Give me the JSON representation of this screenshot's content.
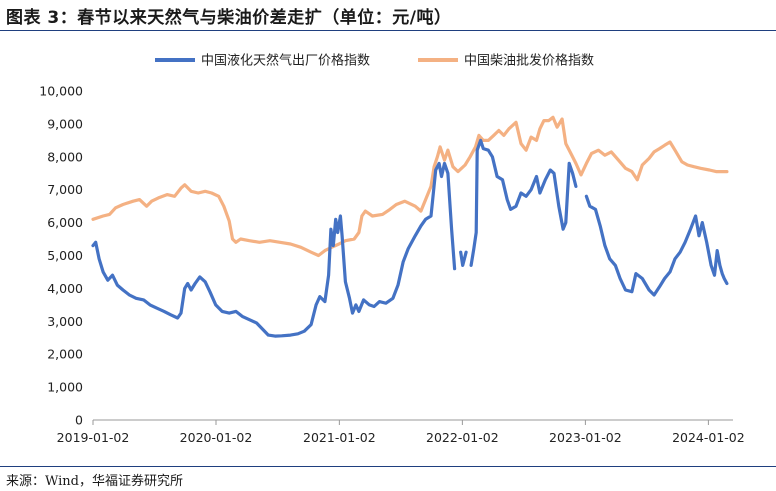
{
  "header": {
    "title": "图表 3：春节以来天然气与柴油价差走扩（单位：元/吨）"
  },
  "footer": {
    "source": "来源：Wind，华福证券研究所"
  },
  "chart_data": {
    "type": "line",
    "title": "图表 3：春节以来天然气与柴油价差走扩（单位：元/吨）",
    "xlabel": "",
    "ylabel": "",
    "ylim": [
      0,
      10000
    ],
    "yticks": [
      0,
      1000,
      2000,
      3000,
      4000,
      5000,
      6000,
      7000,
      8000,
      9000,
      10000
    ],
    "ytick_labels": [
      "0",
      "1,000",
      "2,000",
      "3,000",
      "4,000",
      "5,000",
      "6,000",
      "7,000",
      "8,000",
      "9,000",
      "10,000"
    ],
    "xlim": [
      "2019-01-02",
      "2024-03-15"
    ],
    "xticks": [
      "2019-01-02",
      "2020-01-02",
      "2021-01-02",
      "2022-01-02",
      "2023-01-02",
      "2024-01-02"
    ],
    "legend_position": "top",
    "grid": false,
    "series": [
      {
        "name": "中国液化天然气出厂价格指数",
        "color": "#4472c4",
        "points": [
          [
            "2019-01-02",
            5300
          ],
          [
            "2019-01-10",
            5400
          ],
          [
            "2019-01-20",
            4900
          ],
          [
            "2019-02-01",
            4500
          ],
          [
            "2019-02-15",
            4250
          ],
          [
            "2019-03-01",
            4400
          ],
          [
            "2019-03-15",
            4100
          ],
          [
            "2019-04-01",
            3950
          ],
          [
            "2019-04-20",
            3800
          ],
          [
            "2019-05-10",
            3700
          ],
          [
            "2019-06-01",
            3650
          ],
          [
            "2019-06-20",
            3500
          ],
          [
            "2019-07-10",
            3400
          ],
          [
            "2019-08-01",
            3300
          ],
          [
            "2019-08-20",
            3200
          ],
          [
            "2019-09-10",
            3100
          ],
          [
            "2019-09-20",
            3250
          ],
          [
            "2019-10-01",
            4000
          ],
          [
            "2019-10-10",
            4150
          ],
          [
            "2019-10-20",
            3950
          ],
          [
            "2019-11-01",
            4150
          ],
          [
            "2019-11-15",
            4350
          ],
          [
            "2019-12-01",
            4200
          ],
          [
            "2019-12-15",
            3900
          ],
          [
            "2020-01-01",
            3500
          ],
          [
            "2020-01-20",
            3300
          ],
          [
            "2020-02-10",
            3250
          ],
          [
            "2020-03-01",
            3300
          ],
          [
            "2020-03-20",
            3150
          ],
          [
            "2020-04-10",
            3050
          ],
          [
            "2020-05-01",
            2950
          ],
          [
            "2020-05-20",
            2750
          ],
          [
            "2020-06-05",
            2580
          ],
          [
            "2020-06-25",
            2550
          ],
          [
            "2020-07-15",
            2560
          ],
          [
            "2020-08-10",
            2580
          ],
          [
            "2020-09-01",
            2620
          ],
          [
            "2020-09-20",
            2700
          ],
          [
            "2020-10-10",
            2900
          ],
          [
            "2020-10-25",
            3500
          ],
          [
            "2020-11-05",
            3750
          ],
          [
            "2020-11-20",
            3600
          ],
          [
            "2020-12-01",
            4400
          ],
          [
            "2020-12-08",
            5800
          ],
          [
            "2020-12-15",
            5300
          ],
          [
            "2020-12-22",
            6100
          ],
          [
            "2020-12-28",
            5700
          ],
          [
            "2021-01-05",
            6200
          ],
          [
            "2021-01-10",
            5600
          ],
          [
            "2021-01-20",
            4200
          ],
          [
            "2021-02-01",
            3700
          ],
          [
            "2021-02-10",
            3250
          ],
          [
            "2021-02-20",
            3500
          ],
          [
            "2021-03-01",
            3300
          ],
          [
            "2021-03-15",
            3650
          ],
          [
            "2021-04-01",
            3500
          ],
          [
            "2021-04-15",
            3450
          ],
          [
            "2021-05-01",
            3600
          ],
          [
            "2021-05-20",
            3550
          ],
          [
            "2021-06-10",
            3700
          ],
          [
            "2021-06-25",
            4100
          ],
          [
            "2021-07-10",
            4800
          ],
          [
            "2021-07-25",
            5200
          ],
          [
            "2021-08-15",
            5600
          ],
          [
            "2021-09-01",
            5900
          ],
          [
            "2021-09-15",
            6100
          ],
          [
            "2021-10-01",
            6200
          ],
          [
            "2021-10-15",
            7600
          ],
          [
            "2021-10-25",
            7800
          ],
          [
            "2021-11-01",
            7400
          ],
          [
            "2021-11-10",
            7800
          ],
          [
            "2021-11-20",
            7500
          ],
          [
            "2021-12-01",
            5800
          ],
          [
            "2021-12-10",
            4600
          ],
          null,
          [
            "2021-12-28",
            5100
          ],
          [
            "2022-01-03",
            4700
          ],
          [
            "2022-01-08",
            4900
          ],
          [
            "2022-01-13",
            5100
          ],
          null,
          [
            "2022-01-28",
            4700
          ],
          [
            "2022-02-05",
            5200
          ],
          [
            "2022-02-12",
            5700
          ],
          [
            "2022-02-15",
            8200
          ],
          [
            "2022-02-25",
            8500
          ],
          [
            "2022-03-05",
            8250
          ],
          [
            "2022-03-20",
            8200
          ],
          [
            "2022-04-01",
            8000
          ],
          [
            "2022-04-15",
            7400
          ],
          [
            "2022-05-01",
            7300
          ],
          [
            "2022-05-15",
            6700
          ],
          [
            "2022-05-25",
            6400
          ],
          [
            "2022-06-10",
            6500
          ],
          [
            "2022-06-25",
            6900
          ],
          [
            "2022-07-10",
            6800
          ],
          [
            "2022-07-25",
            7000
          ],
          [
            "2022-08-10",
            7400
          ],
          [
            "2022-08-20",
            6900
          ],
          [
            "2022-09-05",
            7300
          ],
          [
            "2022-09-20",
            7600
          ],
          [
            "2022-10-01",
            7500
          ],
          [
            "2022-10-15",
            6500
          ],
          [
            "2022-10-28",
            5800
          ],
          [
            "2022-11-05",
            6000
          ],
          [
            "2022-11-15",
            7800
          ],
          [
            "2022-11-25",
            7500
          ],
          [
            "2022-12-05",
            7100
          ],
          null,
          [
            "2023-01-05",
            6800
          ],
          [
            "2023-01-15",
            6500
          ],
          [
            "2023-02-01",
            6400
          ],
          [
            "2023-02-15",
            5900
          ],
          [
            "2023-03-01",
            5300
          ],
          [
            "2023-03-15",
            4900
          ],
          [
            "2023-04-01",
            4700
          ],
          [
            "2023-04-15",
            4300
          ],
          [
            "2023-05-01",
            3950
          ],
          [
            "2023-05-20",
            3900
          ],
          [
            "2023-06-01",
            4450
          ],
          [
            "2023-06-20",
            4300
          ],
          [
            "2023-07-10",
            3950
          ],
          [
            "2023-07-25",
            3800
          ],
          [
            "2023-08-10",
            4050
          ],
          [
            "2023-08-25",
            4300
          ],
          [
            "2023-09-10",
            4500
          ],
          [
            "2023-09-25",
            4900
          ],
          [
            "2023-10-10",
            5100
          ],
          [
            "2023-10-25",
            5400
          ],
          [
            "2023-11-10",
            5800
          ],
          [
            "2023-11-25",
            6200
          ],
          [
            "2023-12-05",
            5600
          ],
          [
            "2023-12-15",
            6000
          ],
          [
            "2023-12-28",
            5400
          ],
          [
            "2024-01-10",
            4700
          ],
          [
            "2024-01-20",
            4400
          ],
          [
            "2024-01-28",
            5150
          ],
          [
            "2024-02-05",
            4700
          ],
          [
            "2024-02-12",
            4450
          ],
          [
            "2024-02-18",
            4300
          ],
          [
            "2024-02-26",
            4150
          ]
        ]
      },
      {
        "name": "中国柴油批发价格指数",
        "color": "#f4b183",
        "points": [
          [
            "2019-01-02",
            6100
          ],
          [
            "2019-02-01",
            6200
          ],
          [
            "2019-02-20",
            6250
          ],
          [
            "2019-03-10",
            6450
          ],
          [
            "2019-04-01",
            6550
          ],
          [
            "2019-05-01",
            6650
          ],
          [
            "2019-05-20",
            6700
          ],
          [
            "2019-06-10",
            6500
          ],
          [
            "2019-06-25",
            6650
          ],
          [
            "2019-07-15",
            6750
          ],
          [
            "2019-08-10",
            6850
          ],
          [
            "2019-09-01",
            6800
          ],
          [
            "2019-09-20",
            7050
          ],
          [
            "2019-10-01",
            7150
          ],
          [
            "2019-10-20",
            6950
          ],
          [
            "2019-11-10",
            6900
          ],
          [
            "2019-12-01",
            6950
          ],
          [
            "2019-12-20",
            6900
          ],
          [
            "2020-01-10",
            6800
          ],
          [
            "2020-01-25",
            6500
          ],
          [
            "2020-02-10",
            6050
          ],
          [
            "2020-02-20",
            5500
          ],
          [
            "2020-03-01",
            5400
          ],
          [
            "2020-03-15",
            5500
          ],
          [
            "2020-04-10",
            5450
          ],
          [
            "2020-05-10",
            5400
          ],
          [
            "2020-06-10",
            5450
          ],
          [
            "2020-07-10",
            5400
          ],
          [
            "2020-08-10",
            5350
          ],
          [
            "2020-09-10",
            5250
          ],
          [
            "2020-10-10",
            5100
          ],
          [
            "2020-11-01",
            5000
          ],
          [
            "2020-11-20",
            5150
          ],
          [
            "2020-12-10",
            5250
          ],
          [
            "2021-01-01",
            5350
          ],
          [
            "2021-01-20",
            5450
          ],
          [
            "2021-02-15",
            5500
          ],
          [
            "2021-03-01",
            5700
          ],
          [
            "2021-03-10",
            6200
          ],
          [
            "2021-03-20",
            6350
          ],
          [
            "2021-04-10",
            6200
          ],
          [
            "2021-05-10",
            6250
          ],
          [
            "2021-06-01",
            6400
          ],
          [
            "2021-06-20",
            6550
          ],
          [
            "2021-07-15",
            6650
          ],
          [
            "2021-08-15",
            6500
          ],
          [
            "2021-09-01",
            6350
          ],
          [
            "2021-09-15",
            6700
          ],
          [
            "2021-10-01",
            7100
          ],
          [
            "2021-10-10",
            7700
          ],
          [
            "2021-10-20",
            8000
          ],
          [
            "2021-10-28",
            8300
          ],
          [
            "2021-11-10",
            7900
          ],
          [
            "2021-11-20",
            8200
          ],
          [
            "2021-12-05",
            7700
          ],
          [
            "2021-12-20",
            7550
          ],
          [
            "2022-01-10",
            7750
          ],
          [
            "2022-01-25",
            8000
          ],
          [
            "2022-02-10",
            8300
          ],
          [
            "2022-02-20",
            8650
          ],
          [
            "2022-03-05",
            8500
          ],
          [
            "2022-03-20",
            8500
          ],
          [
            "2022-04-05",
            8650
          ],
          [
            "2022-04-20",
            8800
          ],
          [
            "2022-05-05",
            8650
          ],
          [
            "2022-05-20",
            8850
          ],
          [
            "2022-06-10",
            9050
          ],
          [
            "2022-06-25",
            8400
          ],
          [
            "2022-07-10",
            8200
          ],
          [
            "2022-07-25",
            8600
          ],
          [
            "2022-08-10",
            8500
          ],
          [
            "2022-08-20",
            8850
          ],
          [
            "2022-09-01",
            9100
          ],
          [
            "2022-09-15",
            9100
          ],
          [
            "2022-09-28",
            9200
          ],
          [
            "2022-10-10",
            8900
          ],
          [
            "2022-10-25",
            9150
          ],
          [
            "2022-11-05",
            8400
          ],
          [
            "2022-11-20",
            8100
          ],
          [
            "2022-12-05",
            7800
          ],
          [
            "2022-12-20",
            7450
          ],
          [
            "2023-01-05",
            7800
          ],
          [
            "2023-01-20",
            8100
          ],
          [
            "2023-02-10",
            8200
          ],
          [
            "2023-03-01",
            8050
          ],
          [
            "2023-03-20",
            8150
          ],
          [
            "2023-04-10",
            7900
          ],
          [
            "2023-05-01",
            7650
          ],
          [
            "2023-05-20",
            7550
          ],
          [
            "2023-06-05",
            7300
          ],
          [
            "2023-06-20",
            7750
          ],
          [
            "2023-07-10",
            7950
          ],
          [
            "2023-07-25",
            8150
          ],
          [
            "2023-08-10",
            8250
          ],
          [
            "2023-08-25",
            8350
          ],
          [
            "2023-09-10",
            8450
          ],
          [
            "2023-09-25",
            8200
          ],
          [
            "2023-10-15",
            7850
          ],
          [
            "2023-11-01",
            7750
          ],
          [
            "2023-11-20",
            7700
          ],
          [
            "2023-12-10",
            7650
          ],
          [
            "2024-01-05",
            7600
          ],
          [
            "2024-01-25",
            7550
          ],
          [
            "2024-02-15",
            7550
          ],
          [
            "2024-02-26",
            7550
          ]
        ]
      }
    ]
  }
}
